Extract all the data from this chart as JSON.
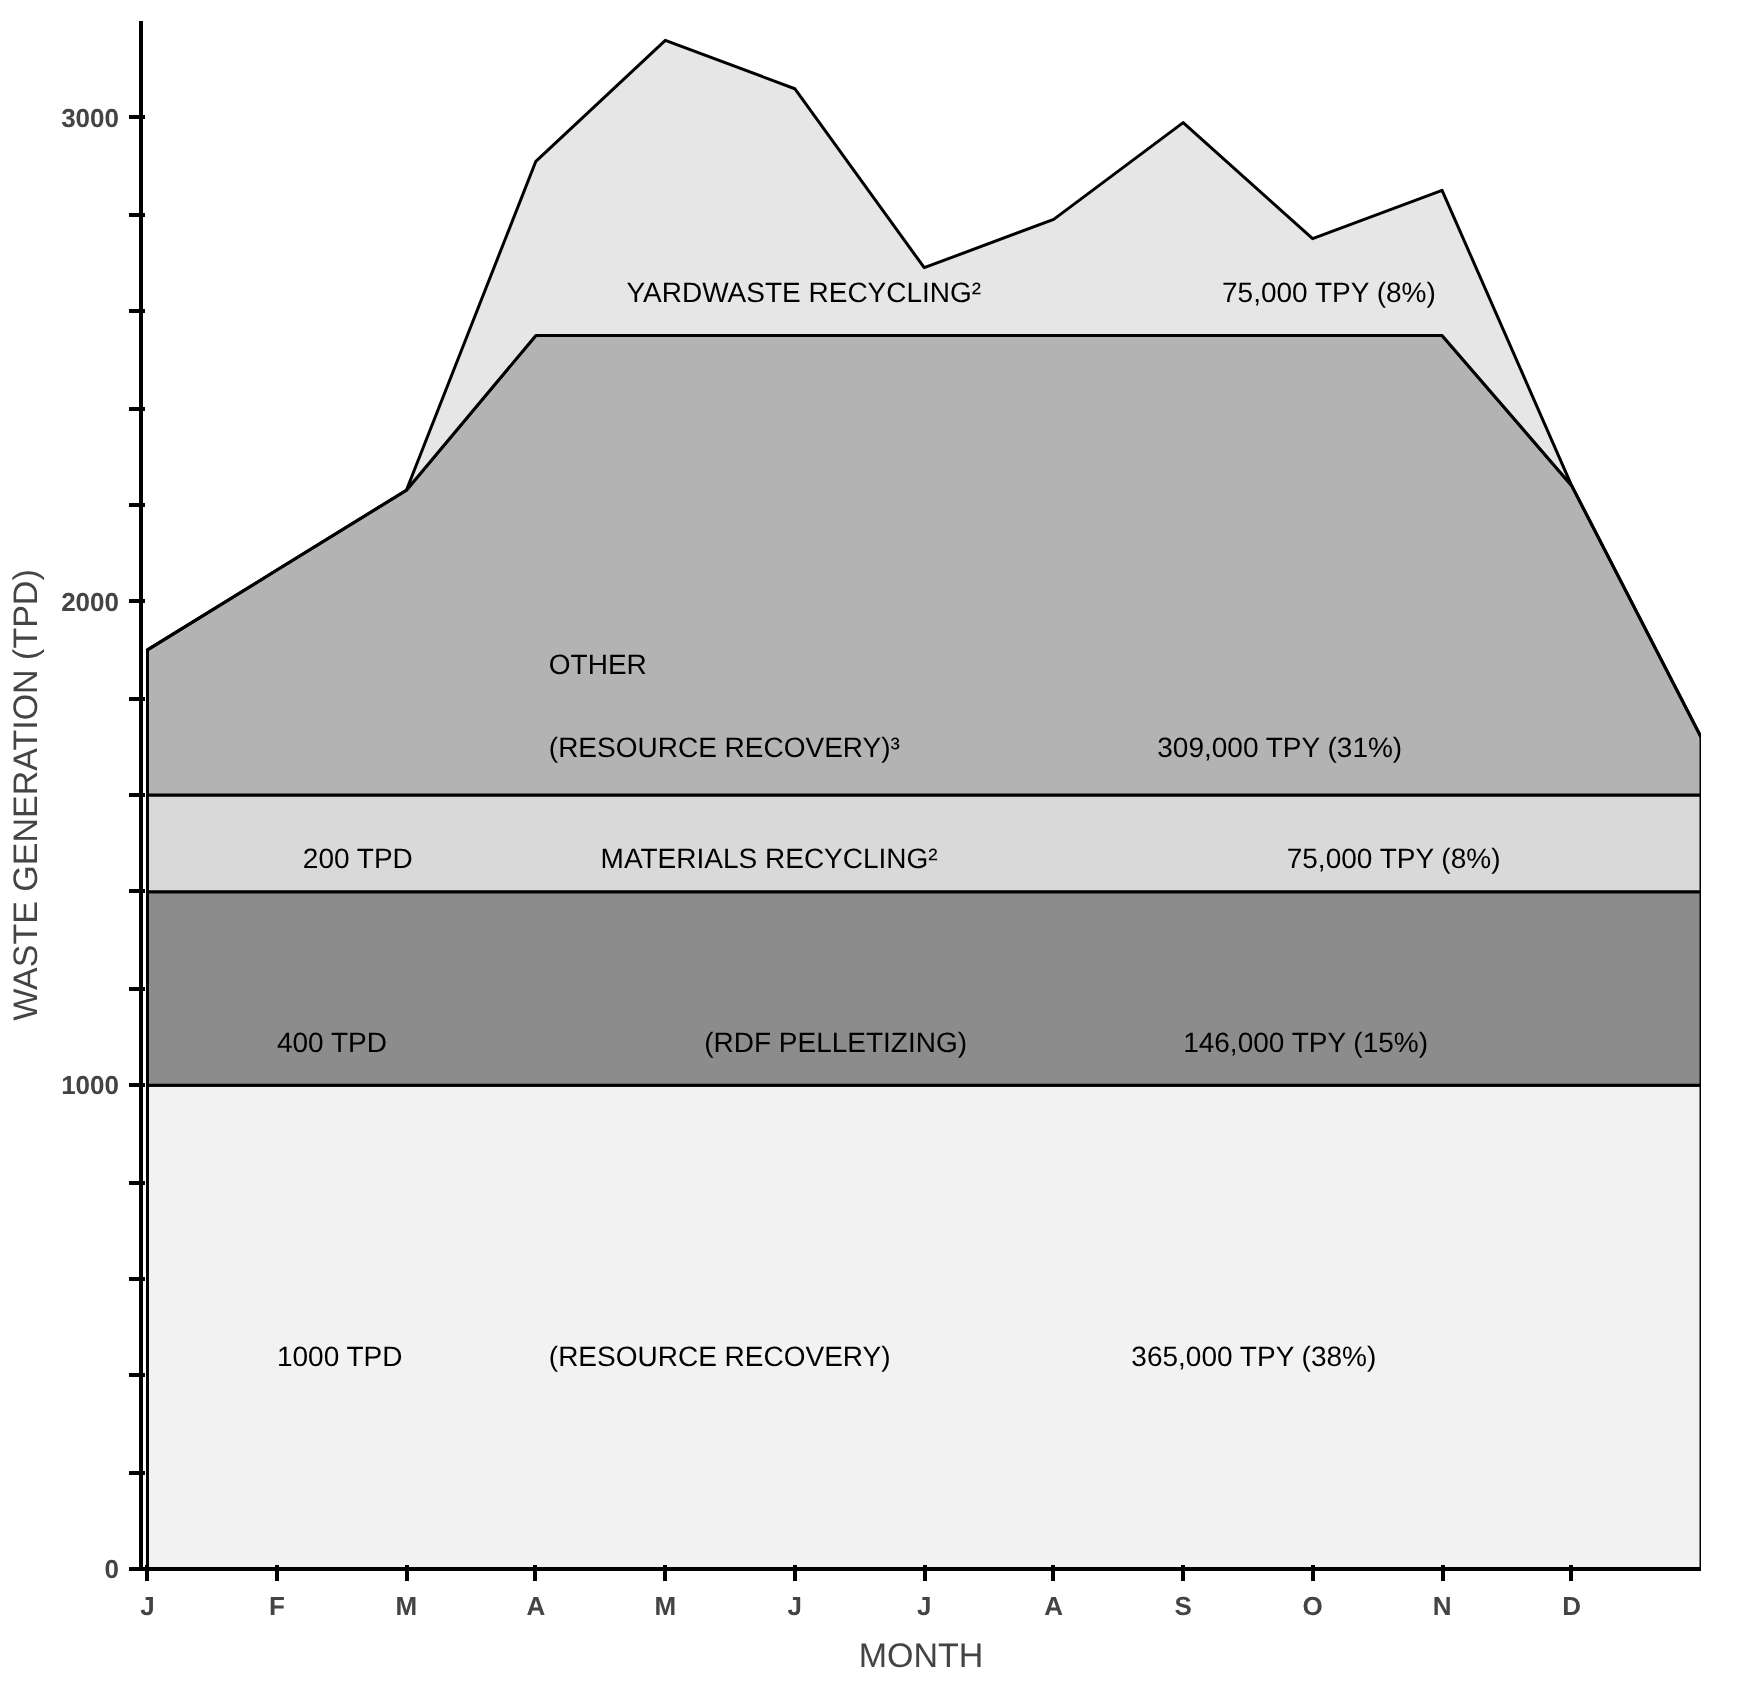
{
  "chart_data": {
    "type": "area",
    "stacked": true,
    "xlabel": "MONTH",
    "ylabel": "WASTE GENERATION (TPD)",
    "categories": [
      "J",
      "F",
      "M",
      "A",
      "M",
      "J",
      "J",
      "A",
      "S",
      "O",
      "N",
      "D",
      null
    ],
    "series": [
      {
        "color": "#f2f2f2",
        "values": [
          1000,
          1000,
          1000,
          1000,
          1000,
          1000,
          1000,
          1000,
          1000,
          1000,
          1000,
          1000,
          1000
        ]
      },
      {
        "color": "#8c8c8c",
        "values": [
          400,
          400,
          400,
          400,
          400,
          400,
          400,
          400,
          400,
          400,
          400,
          400,
          400
        ]
      },
      {
        "color": "#d9d9d9",
        "values": [
          200,
          200,
          200,
          200,
          200,
          200,
          200,
          200,
          200,
          200,
          200,
          200,
          200
        ]
      },
      {
        "color": "#b3b3b3",
        "values": [
          300,
          465,
          630,
          950,
          950,
          950,
          950,
          950,
          950,
          950,
          950,
          640,
          120
        ]
      },
      {
        "color": "#e6e6e6",
        "values": [
          0,
          0,
          0,
          360,
          610,
          510,
          140,
          240,
          440,
          200,
          300,
          0,
          0
        ]
      }
    ],
    "ylim": [
      0,
      3200
    ],
    "yticks": [
      0,
      {
        "value": 200,
        "label": null
      },
      {
        "value": 400,
        "label": null
      },
      {
        "value": 600,
        "label": null
      },
      {
        "value": 800,
        "label": null
      },
      1000,
      {
        "value": 1200,
        "label": null
      },
      {
        "value": 1400,
        "label": null
      },
      {
        "value": 1600,
        "label": null
      },
      {
        "value": 1800,
        "label": null
      },
      2000,
      {
        "value": 2200,
        "label": null
      },
      {
        "value": 2400,
        "label": null
      },
      {
        "value": 2600,
        "label": null
      },
      {
        "value": 2800,
        "label": null
      },
      3000
    ],
    "grid": false,
    "annotations": [
      "YARDWASTE RECYCLING²",
      "75,000 TPY (8%)",
      "OTHER",
      "(RESOURCE RECOVERY)³",
      "309,000 TPY (31%)",
      "200 TPD",
      "MATERIALS RECYCLING²",
      "75,000 TPY (8%)",
      "400 TPD",
      "(RDF PELLETIZING)",
      "146,000 TPY (15%)",
      "1000 TPD",
      "(RESOURCE RECOVERY)",
      "365,000 TPY (38%)"
    ]
  }
}
